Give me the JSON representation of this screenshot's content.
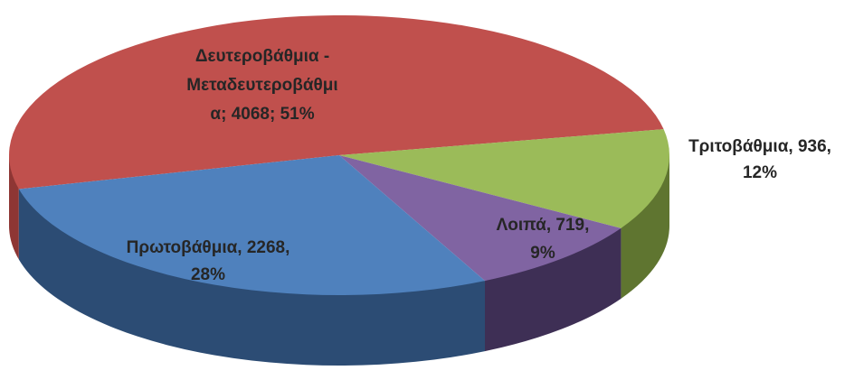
{
  "chart_data": {
    "type": "pie3d",
    "categories": [
      "Δευτεροβάθμια - Μεταδευτεροβάθμια",
      "Τριτοβάθμια",
      "Λοιπά",
      "Πρωτοβάθμια"
    ],
    "values": [
      4068,
      936,
      719,
      2268
    ],
    "labels": [
      [
        "Δευτεροβάθμια -",
        "Μεταδευτεροβάθμι",
        "α; 4068; 51%"
      ],
      [
        "Τριτοβάθμια, 936,",
        "12%"
      ],
      [
        "Λοιπά, 719,",
        "9%"
      ],
      [
        "Πρωτοβάθμια, 2268,",
        "28%"
      ]
    ],
    "colors": [
      "#c0504d",
      "#9bbb59",
      "#8064a2",
      "#4f81bd"
    ],
    "side_colors": [
      "#8e3634",
      "#5f7530",
      "#3e2f55",
      "#2c4c74"
    ]
  }
}
